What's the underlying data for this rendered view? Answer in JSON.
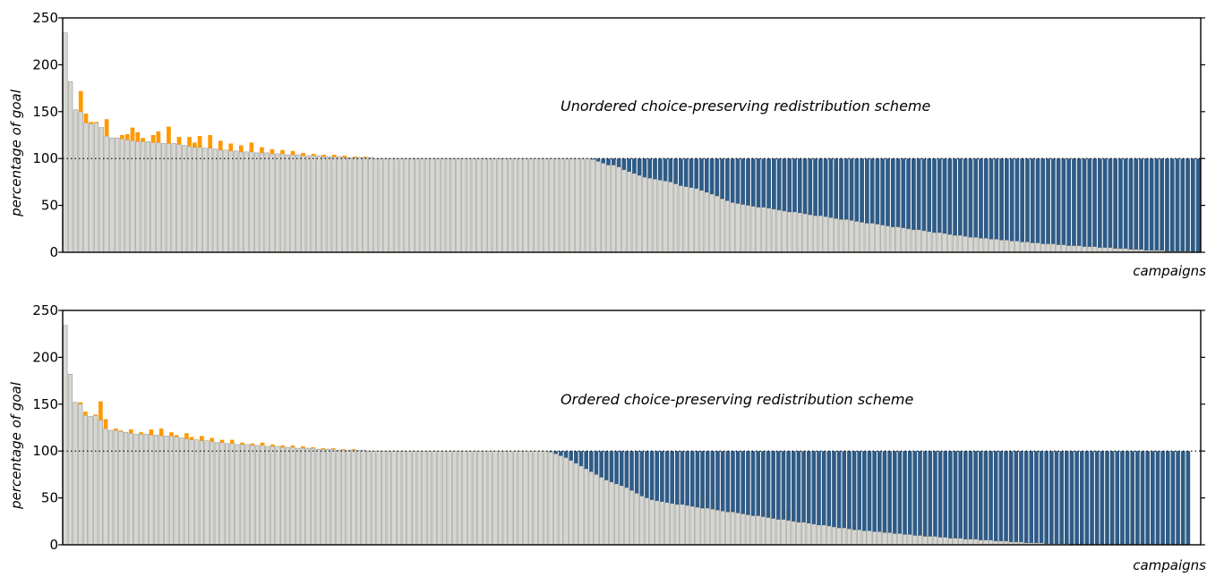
{
  "chart_data": [
    {
      "type": "bar",
      "title": "Unordered choice-preserving redistribution scheme",
      "xlabel": "campaigns",
      "ylabel": "percentage of goal",
      "ylim": [
        0,
        250
      ],
      "yticks": [
        "0",
        "50",
        "100",
        "150",
        "200",
        "250"
      ],
      "reference_line": 100,
      "grid": false,
      "colors": {
        "base": "#d6d6d2",
        "edge": "#9a9a96",
        "removed": "#ff9900",
        "added": "#2f5b86"
      },
      "base": [
        234,
        182,
        152,
        150,
        138,
        137,
        138,
        133,
        124,
        122,
        122,
        121,
        120,
        119,
        118,
        118,
        118,
        117,
        117,
        116,
        116,
        116,
        115,
        114,
        113,
        112,
        112,
        111,
        111,
        110,
        109,
        109,
        108,
        108,
        107,
        107,
        107,
        106,
        106,
        106,
        105,
        105,
        105,
        104,
        104,
        104,
        103,
        103,
        103,
        103,
        102,
        102,
        102,
        102,
        101,
        101,
        101,
        101,
        101,
        101,
        100,
        100,
        100,
        100,
        100,
        100,
        100,
        100,
        100,
        100,
        100,
        100,
        100,
        100,
        100,
        100,
        100,
        100,
        100,
        100,
        100,
        100,
        100,
        100,
        100,
        100,
        100,
        100,
        100,
        100,
        100,
        100,
        100,
        100,
        100,
        100,
        100,
        100,
        100,
        100,
        100,
        100,
        99,
        97,
        95,
        93,
        93,
        91,
        88,
        86,
        84,
        82,
        80,
        79,
        78,
        77,
        76,
        75,
        73,
        71,
        70,
        69,
        68,
        66,
        64,
        62,
        60,
        57,
        55,
        53,
        52,
        51,
        50,
        49,
        48,
        48,
        47,
        46,
        45,
        44,
        43,
        43,
        42,
        41,
        40,
        39,
        39,
        38,
        37,
        36,
        35,
        35,
        34,
        33,
        32,
        31,
        31,
        30,
        29,
        28,
        27,
        27,
        26,
        25,
        24,
        24,
        23,
        22,
        21,
        21,
        20,
        19,
        18,
        18,
        17,
        16,
        16,
        15,
        15,
        14,
        14,
        13,
        13,
        12,
        12,
        11,
        11,
        10,
        10,
        9,
        9,
        9,
        8,
        8,
        7,
        7,
        7,
        6,
        6,
        6,
        5,
        5,
        5,
        4,
        4,
        4,
        3,
        3,
        3,
        2,
        2,
        2,
        2,
        1,
        1,
        1,
        1,
        1,
        0,
        0
      ],
      "removed": [
        0,
        0,
        0,
        22,
        10,
        2,
        1,
        0,
        18,
        0,
        0,
        4,
        6,
        14,
        10,
        4,
        0,
        8,
        12,
        0,
        18,
        0,
        8,
        0,
        10,
        5,
        12,
        0,
        14,
        0,
        10,
        0,
        8,
        0,
        7,
        0,
        10,
        0,
        6,
        0,
        5,
        0,
        4,
        0,
        4,
        0,
        3,
        0,
        2,
        0,
        2,
        0,
        2,
        0,
        2,
        0,
        1,
        0,
        1,
        0,
        0,
        0,
        0,
        0,
        0,
        0,
        0,
        0,
        0,
        0,
        0,
        0,
        0,
        0,
        0,
        0,
        0,
        0,
        0,
        0,
        0,
        0,
        0,
        0,
        0,
        0,
        0,
        0,
        0,
        0,
        0,
        0,
        0,
        0,
        0,
        0,
        0,
        0,
        0,
        0,
        0,
        0,
        0,
        0,
        0,
        0,
        0,
        0,
        0,
        0,
        0,
        0,
        0,
        0,
        0,
        0,
        0,
        0,
        0,
        0,
        0,
        0,
        0,
        0,
        0,
        3,
        4,
        2,
        0,
        0,
        0,
        3,
        1,
        0,
        0,
        0,
        2,
        0,
        4,
        0,
        3,
        0,
        0,
        2,
        0,
        0,
        0,
        0,
        0,
        2,
        0,
        4,
        0,
        0,
        2,
        0,
        0,
        4,
        0,
        0,
        0,
        5,
        0,
        2,
        0,
        0,
        0,
        0,
        0,
        2,
        0,
        6,
        0,
        0,
        0,
        0,
        0,
        0,
        0,
        0,
        0,
        2,
        0,
        0,
        0,
        0,
        0,
        2,
        0,
        2,
        0,
        0,
        3,
        0,
        0,
        0,
        2,
        0,
        3,
        0,
        0,
        0,
        2,
        0,
        0,
        0,
        3,
        0,
        2,
        0,
        0,
        0,
        2,
        0,
        0,
        0,
        1,
        0,
        0,
        0,
        1,
        0,
        0,
        0,
        0,
        0
      ],
      "added": [
        0,
        0,
        0,
        0,
        0,
        0,
        0,
        0,
        0,
        0,
        0,
        0,
        0,
        0,
        0,
        0,
        0,
        0,
        0,
        0,
        0,
        0,
        0,
        0,
        0,
        0,
        0,
        0,
        0,
        0,
        0,
        0,
        0,
        0,
        0,
        0,
        0,
        0,
        0,
        0,
        0,
        0,
        0,
        0,
        0,
        0,
        0,
        0,
        0,
        0,
        0,
        0,
        0,
        0,
        0,
        0,
        0,
        0,
        0,
        0,
        0,
        0,
        0,
        0,
        0,
        0,
        0,
        0,
        0,
        0,
        0,
        0,
        0,
        0,
        0,
        0,
        0,
        0,
        0,
        0,
        0,
        0,
        0,
        0,
        0,
        0,
        0,
        0,
        0,
        0,
        0,
        0,
        0,
        0,
        0,
        0,
        0,
        0,
        0,
        0,
        0,
        0,
        1,
        3,
        5,
        7,
        7,
        9,
        12,
        14,
        16,
        18,
        20,
        21,
        22,
        23,
        24,
        25,
        27,
        29,
        30,
        31,
        32,
        34,
        36,
        38,
        40,
        43,
        45,
        47,
        48,
        49,
        50,
        51,
        52,
        52,
        53,
        54,
        55,
        56,
        57,
        57,
        58,
        59,
        60,
        61,
        61,
        62,
        63,
        64,
        65,
        65,
        66,
        67,
        68,
        69,
        69,
        70,
        71,
        72,
        73,
        73,
        74,
        75,
        76,
        76,
        77,
        78,
        79,
        79,
        80,
        81,
        82,
        82,
        83,
        84,
        84,
        85,
        85,
        86,
        86,
        87,
        87,
        88,
        88,
        89,
        89,
        90,
        90,
        91,
        91,
        91,
        92,
        92,
        93,
        93,
        93,
        94,
        94,
        94,
        95,
        95,
        95,
        96,
        96,
        96,
        97,
        97,
        97,
        98,
        98,
        98,
        98,
        99,
        99,
        99,
        99,
        99,
        100,
        100
      ]
    },
    {
      "type": "bar",
      "title": "Ordered choice-preserving redistribution scheme",
      "xlabel": "campaigns",
      "ylabel": "percentage of goal",
      "ylim": [
        0,
        250
      ],
      "yticks": [
        "0",
        "50",
        "100",
        "150",
        "200",
        "250"
      ],
      "reference_line": 100,
      "grid": false,
      "colors": {
        "base": "#d6d6d2",
        "edge": "#9a9a96",
        "removed": "#ff9900",
        "added": "#2f5b86"
      },
      "base": [
        234,
        182,
        152,
        150,
        138,
        137,
        138,
        133,
        124,
        122,
        122,
        121,
        120,
        119,
        118,
        118,
        118,
        117,
        117,
        116,
        116,
        116,
        115,
        114,
        113,
        112,
        112,
        111,
        111,
        110,
        109,
        109,
        108,
        108,
        107,
        107,
        107,
        106,
        106,
        106,
        105,
        105,
        105,
        104,
        104,
        104,
        103,
        103,
        103,
        103,
        102,
        102,
        102,
        102,
        101,
        101,
        101,
        101,
        101,
        101,
        100,
        100,
        100,
        100,
        100,
        100,
        100,
        100,
        100,
        100,
        100,
        100,
        100,
        100,
        100,
        100,
        100,
        100,
        100,
        100,
        100,
        100,
        100,
        100,
        100,
        100,
        100,
        100,
        100,
        100,
        100,
        100,
        100,
        100,
        100,
        100,
        99,
        97,
        95,
        93,
        90,
        87,
        84,
        81,
        78,
        75,
        72,
        69,
        67,
        65,
        63,
        61,
        58,
        55,
        52,
        50,
        48,
        47,
        46,
        45,
        44,
        43,
        43,
        42,
        41,
        40,
        39,
        39,
        38,
        37,
        36,
        35,
        35,
        34,
        33,
        32,
        31,
        31,
        30,
        29,
        28,
        27,
        27,
        26,
        25,
        24,
        24,
        23,
        22,
        21,
        21,
        20,
        19,
        18,
        18,
        17,
        16,
        16,
        15,
        15,
        14,
        14,
        13,
        13,
        12,
        12,
        11,
        11,
        10,
        10,
        9,
        9,
        9,
        8,
        8,
        7,
        7,
        7,
        6,
        6,
        6,
        5,
        5,
        5,
        4,
        4,
        4,
        3,
        3,
        3,
        2,
        2,
        2,
        2,
        1,
        1,
        1,
        1,
        1,
        0,
        0,
        0,
        0,
        0,
        0,
        0,
        0,
        0,
        0,
        0,
        0,
        0,
        0,
        0,
        0,
        0,
        0,
        0,
        0,
        0,
        0,
        0,
        0,
        0,
        0
      ],
      "removed": [
        0,
        0,
        0,
        2,
        4,
        0,
        1,
        20,
        10,
        0,
        2,
        1,
        0,
        4,
        0,
        2,
        0,
        6,
        0,
        8,
        0,
        4,
        2,
        0,
        6,
        3,
        0,
        5,
        0,
        4,
        0,
        3,
        0,
        4,
        0,
        2,
        0,
        2,
        0,
        3,
        0,
        2,
        0,
        2,
        0,
        2,
        0,
        2,
        0,
        1,
        0,
        1,
        0,
        1,
        0,
        1,
        0,
        1,
        0,
        0,
        0,
        0,
        0,
        0,
        0,
        0,
        0,
        0,
        0,
        0,
        0,
        0,
        0,
        0,
        0,
        0,
        0,
        0,
        0,
        0,
        0,
        0,
        0,
        0,
        0,
        0,
        0,
        0,
        0,
        0,
        0,
        0,
        0,
        0,
        0,
        0,
        0,
        0,
        0,
        0,
        0,
        0,
        0,
        0,
        0,
        0,
        0,
        0,
        0,
        0,
        0,
        0,
        0,
        0,
        0,
        0,
        0,
        0,
        0,
        0,
        0,
        5,
        0,
        4,
        0,
        3,
        14,
        0,
        8,
        0,
        2,
        0,
        3,
        0,
        0,
        4,
        0,
        2,
        0,
        6,
        0,
        3,
        0,
        12,
        0,
        4,
        0,
        2,
        0,
        0,
        0,
        3,
        0,
        0,
        0,
        4,
        0,
        5,
        0,
        0,
        0,
        0,
        2,
        0,
        3,
        0,
        0,
        0,
        2,
        0,
        4,
        0,
        0,
        0,
        1,
        0,
        3,
        0,
        0,
        0,
        2,
        0,
        0,
        0,
        2,
        0,
        3,
        0,
        0,
        0,
        2,
        0,
        0,
        0,
        1,
        0,
        0,
        0,
        1,
        0,
        0,
        0,
        0,
        0,
        0,
        0,
        0,
        0,
        0,
        0,
        0,
        0,
        0,
        0,
        0,
        0,
        0,
        0,
        0,
        0,
        0,
        0,
        0
      ],
      "added": [
        0,
        0,
        0,
        0,
        0,
        0,
        0,
        0,
        0,
        0,
        0,
        0,
        0,
        0,
        0,
        0,
        0,
        0,
        0,
        0,
        0,
        0,
        0,
        0,
        0,
        0,
        0,
        0,
        0,
        0,
        0,
        0,
        0,
        0,
        0,
        0,
        0,
        0,
        0,
        0,
        0,
        0,
        0,
        0,
        0,
        0,
        0,
        0,
        0,
        0,
        0,
        0,
        0,
        0,
        0,
        0,
        0,
        0,
        0,
        0,
        0,
        0,
        0,
        0,
        0,
        0,
        0,
        0,
        0,
        0,
        0,
        0,
        0,
        0,
        0,
        0,
        0,
        0,
        0,
        0,
        0,
        0,
        0,
        0,
        0,
        0,
        0,
        0,
        0,
        0,
        0,
        0,
        0,
        0,
        0,
        0,
        1,
        3,
        5,
        7,
        10,
        13,
        16,
        19,
        22,
        25,
        28,
        31,
        33,
        35,
        37,
        39,
        42,
        45,
        48,
        50,
        52,
        53,
        54,
        55,
        56,
        57,
        57,
        58,
        59,
        60,
        61,
        61,
        62,
        63,
        64,
        65,
        65,
        66,
        67,
        68,
        69,
        69,
        70,
        71,
        72,
        73,
        73,
        74,
        75,
        76,
        76,
        77,
        78,
        79,
        79,
        80,
        81,
        82,
        82,
        83,
        84,
        84,
        85,
        85,
        86,
        86,
        87,
        87,
        88,
        88,
        89,
        89,
        90,
        90,
        91,
        91,
        91,
        92,
        92,
        93,
        93,
        93,
        94,
        94,
        94,
        95,
        95,
        95,
        96,
        96,
        96,
        97,
        97,
        97,
        98,
        98,
        98,
        98,
        99,
        99,
        99,
        99,
        99,
        100,
        100,
        100,
        100,
        100,
        100,
        100,
        100,
        100,
        100,
        100,
        100,
        100,
        100,
        100,
        100,
        100,
        100,
        100,
        100,
        100,
        100,
        100,
        100
      ]
    }
  ]
}
